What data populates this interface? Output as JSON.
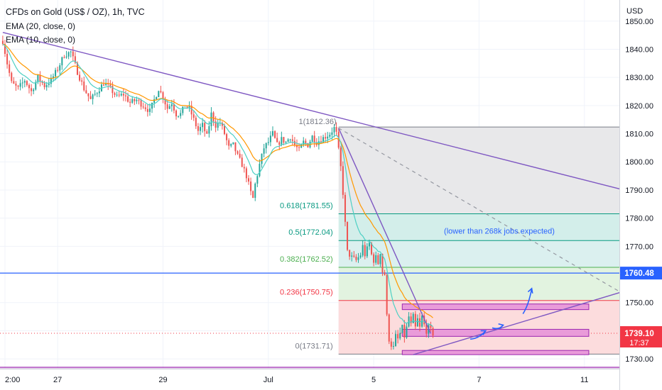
{
  "header": {
    "title": "CFDs on Gold (US$ / OZ), 1h, TVC",
    "ema20": "EMA (20, close, 0)",
    "ema10": "EMA (10, close, 0)"
  },
  "chart_data": {
    "type": "candlestick",
    "currency_label": "USD",
    "ylim": [
      1726.5,
      1857.5
    ],
    "y_ticks": [
      1850,
      1840,
      1830,
      1820,
      1810,
      1800,
      1790,
      1780,
      1770,
      1760,
      1750,
      1740,
      1730
    ],
    "y_tick_labels": [
      "1850.00",
      "1840.00",
      "1830.00",
      "1820.00",
      "1810.00",
      "1800.00",
      "1790.00",
      "1780.00",
      "1770.00",
      "1760.00",
      "1750.00",
      "1740.00",
      "1730.00"
    ],
    "x_ticks": [
      {
        "label": "2:00",
        "x": 0
      },
      {
        "label": "27",
        "x": 24
      },
      {
        "label": "29",
        "x": 72
      },
      {
        "label": "Jul",
        "x": 120
      },
      {
        "label": "5",
        "x": 168
      },
      {
        "label": "7",
        "x": 216
      },
      {
        "label": "11",
        "x": 264
      }
    ],
    "price_path": [
      [
        -1,
        1843
      ],
      [
        1,
        1835
      ],
      [
        3,
        1828
      ],
      [
        6,
        1826
      ],
      [
        9,
        1829
      ],
      [
        12,
        1825
      ],
      [
        15,
        1830
      ],
      [
        18,
        1827
      ],
      [
        21,
        1829
      ],
      [
        24,
        1833
      ],
      [
        27,
        1838
      ],
      [
        30,
        1839
      ],
      [
        33,
        1832
      ],
      [
        36,
        1826
      ],
      [
        39,
        1822
      ],
      [
        42,
        1825
      ],
      [
        45,
        1828
      ],
      [
        48,
        1826
      ],
      [
        51,
        1823
      ],
      [
        54,
        1824
      ],
      [
        57,
        1821
      ],
      [
        60,
        1822
      ],
      [
        63,
        1820
      ],
      [
        66,
        1818
      ],
      [
        68,
        1822
      ],
      [
        70,
        1826
      ],
      [
        72,
        1823
      ],
      [
        74,
        1819
      ],
      [
        76,
        1821
      ],
      [
        78,
        1817
      ],
      [
        80,
        1817
      ],
      [
        82,
        1820
      ],
      [
        84,
        1819
      ],
      [
        86,
        1815
      ],
      [
        88,
        1811
      ],
      [
        90,
        1813
      ],
      [
        92,
        1809
      ],
      [
        94,
        1817
      ],
      [
        96,
        1813
      ],
      [
        98,
        1814
      ],
      [
        100,
        1810
      ],
      [
        102,
        1805
      ],
      [
        104,
        1806
      ],
      [
        106,
        1802
      ],
      [
        108,
        1799
      ],
      [
        110,
        1795
      ],
      [
        112,
        1789
      ],
      [
        113,
        1787
      ],
      [
        114,
        1792
      ],
      [
        116,
        1799
      ],
      [
        118,
        1805
      ],
      [
        120,
        1807
      ],
      [
        122,
        1810
      ],
      [
        124,
        1806
      ],
      [
        126,
        1808
      ],
      [
        128,
        1807
      ],
      [
        130,
        1809
      ],
      [
        132,
        1806
      ],
      [
        134,
        1804
      ],
      [
        136,
        1807
      ],
      [
        138,
        1806
      ],
      [
        140,
        1809
      ],
      [
        142,
        1807
      ],
      [
        144,
        1808
      ],
      [
        146,
        1809
      ],
      [
        148,
        1810
      ],
      [
        150,
        1812
      ],
      [
        151,
        1810
      ],
      [
        152,
        1804
      ],
      [
        153,
        1798
      ],
      [
        154,
        1789
      ],
      [
        155,
        1778
      ],
      [
        156,
        1768
      ],
      [
        157,
        1767
      ],
      [
        158,
        1766
      ],
      [
        160,
        1765
      ],
      [
        162,
        1767
      ],
      [
        163,
        1770
      ],
      [
        164,
        1767
      ],
      [
        165,
        1769
      ],
      [
        166,
        1771
      ],
      [
        167,
        1767
      ],
      [
        168,
        1765
      ],
      [
        169,
        1766
      ],
      [
        170,
        1764
      ],
      [
        171,
        1768
      ],
      [
        172,
        1761
      ],
      [
        173,
        1760
      ],
      [
        174,
        1745
      ],
      [
        175,
        1737
      ],
      [
        176,
        1735
      ],
      [
        177,
        1734
      ],
      [
        178,
        1738
      ],
      [
        179,
        1737
      ],
      [
        180,
        1739
      ],
      [
        181,
        1741
      ],
      [
        182,
        1738
      ],
      [
        183,
        1741
      ],
      [
        184,
        1745
      ],
      [
        185,
        1742
      ],
      [
        186,
        1745
      ],
      [
        187,
        1741
      ],
      [
        188,
        1744
      ],
      [
        189,
        1741
      ],
      [
        190,
        1745
      ],
      [
        191,
        1742
      ],
      [
        192,
        1740
      ],
      [
        193,
        1741
      ],
      [
        194,
        1740
      ],
      [
        195,
        1739
      ]
    ],
    "horizontal_levels": [
      {
        "name": "support-resistance",
        "price": 1760.48,
        "color": "#2962ff"
      },
      {
        "name": "violet-level",
        "price": 1727,
        "color": "#9c27b0"
      }
    ],
    "current_price": {
      "label": "1739.10",
      "time": "17:37",
      "price": 1739.1,
      "color": "#f23645"
    },
    "level_marker": {
      "label": "1760.48",
      "price": 1760.48,
      "color": "#2962ff"
    },
    "fib_retracement": {
      "x_start": 152,
      "x_end": 280,
      "high_label": "1(1812.36)",
      "high": 1812.36,
      "levels": [
        {
          "ratio": "0.618",
          "price": 1781.55,
          "label": "0.618(1781.55)",
          "color": "#089981",
          "fill": "#d3eeea"
        },
        {
          "ratio": "0.5",
          "price": 1772.04,
          "label": "0.5(1772.04)",
          "color": "#089981",
          "fill": "#dbf0ef"
        },
        {
          "ratio": "0.382",
          "price": 1762.52,
          "label": "0.382(1762.52)",
          "color": "#4caf50",
          "fill": "#e2f3e0"
        },
        {
          "ratio": "0.236",
          "price": 1750.75,
          "label": "0.236(1750.75)",
          "color": "#f23645",
          "fill": "#e6f4ea"
        },
        {
          "ratio": "0",
          "price": 1731.71,
          "label": "0(1731.71)",
          "color": "#787b86",
          "fill": "#fcdcdd"
        }
      ]
    },
    "annotation": {
      "text": "(lower than 268k jobs expected)",
      "color": "#2962ff"
    },
    "trendlines": [
      {
        "name": "long-downtrend",
        "from": [
          -1,
          1846
        ],
        "to": [
          282,
          1790
        ],
        "color": "#7e57c2"
      },
      {
        "name": "steep-downtrend",
        "from": [
          152,
          1812
        ],
        "to": [
          194,
          1739
        ],
        "color": "#7e57c2"
      },
      {
        "name": "rising-support",
        "from": [
          186,
          1731.5
        ],
        "to": [
          282,
          1754
        ],
        "color": "#7e57c2"
      },
      {
        "name": "projection-dashed",
        "from": [
          152,
          1812
        ],
        "to": [
          282,
          1753
        ],
        "color": "#9598a1"
      }
    ],
    "consolidation_boxes": [
      {
        "top": 1749.5,
        "bottom": 1747.5
      },
      {
        "top": 1740.5,
        "bottom": 1738.0
      },
      {
        "top": 1733.0,
        "bottom": 1731.5
      }
    ],
    "projection_arrows": [
      [
        [
          212,
          1737
        ],
        [
          219,
          1740
        ]
      ],
      [
        [
          222,
          1741
        ],
        [
          227,
          1742
        ]
      ],
      [
        [
          236,
          1746
        ],
        [
          240,
          1755
        ]
      ]
    ]
  }
}
